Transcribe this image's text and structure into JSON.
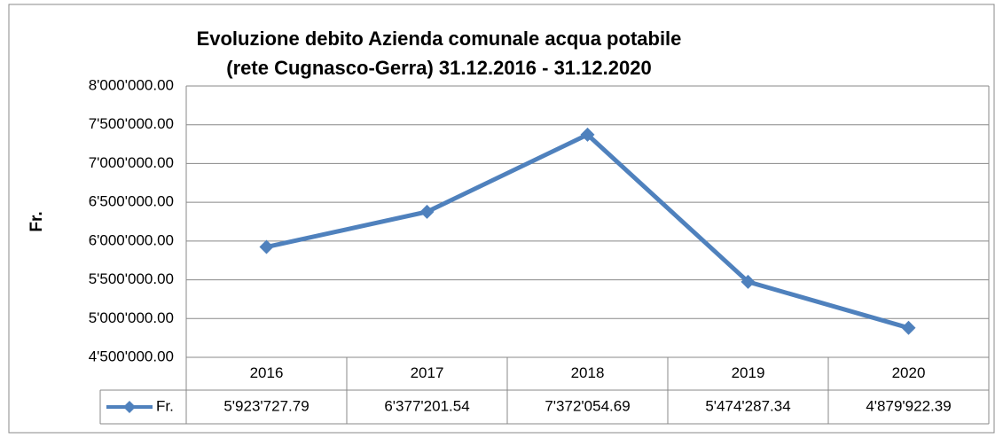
{
  "chart_data": {
    "type": "line",
    "title": [
      "Evoluzione debito Azienda comunale acqua potabile",
      "(rete Cugnasco-Gerra) 31.12.2016 - 31.12.2020"
    ],
    "y_label": "Fr.",
    "categories": [
      "2016",
      "2017",
      "2018",
      "2019",
      "2020"
    ],
    "series": [
      {
        "name": "Fr.",
        "color": "#4f81bd",
        "values": [
          5923727.79,
          6377201.54,
          7372054.69,
          5474287.34,
          4879922.39
        ],
        "value_labels": [
          "5'923'727.79",
          "6'377'201.54",
          "7'372'054.69",
          "5'474'287.34",
          "4'879'922.39"
        ]
      }
    ],
    "ylim": [
      4500000,
      8000000
    ],
    "yticks": [
      {
        "value": 4500000,
        "label": "4'500'000.00"
      },
      {
        "value": 5000000,
        "label": "5'000'000.00"
      },
      {
        "value": 5500000,
        "label": "5'500'000.00"
      },
      {
        "value": 6000000,
        "label": "6'000'000.00"
      },
      {
        "value": 6500000,
        "label": "6'500'000.00"
      },
      {
        "value": 7000000,
        "label": "7'000'000.00"
      },
      {
        "value": 7500000,
        "label": "7'500'000.00"
      },
      {
        "value": 8000000,
        "label": "8'000'000.00"
      }
    ],
    "grid": true
  }
}
